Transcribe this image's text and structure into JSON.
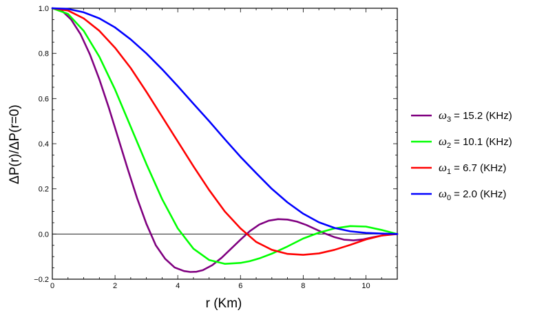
{
  "chart_data": {
    "type": "line",
    "title": "",
    "xlabel": "r (Km)",
    "ylabel": "ΔP(r)/ΔP(r=0)",
    "xlim": [
      0,
      11
    ],
    "ylim": [
      -0.2,
      1.0
    ],
    "xticks": [
      0,
      2,
      4,
      6,
      8,
      10
    ],
    "yticks": [
      -0.2,
      0.0,
      0.2,
      0.4,
      0.6,
      0.8,
      1.0
    ],
    "ytick_labels": [
      "−0.2",
      "0.0",
      "0.2",
      "0.4",
      "0.6",
      "0.8",
      "1.0"
    ],
    "grid": false,
    "legend_position": "right",
    "zero_line": true,
    "series": [
      {
        "symbol": "ω",
        "sub": "3",
        "value_text": "= 15.2 (KHz)",
        "color": "#800080",
        "x": [
          0,
          0.3,
          0.6,
          0.9,
          1.2,
          1.5,
          1.8,
          2.1,
          2.4,
          2.7,
          3.0,
          3.3,
          3.6,
          3.9,
          4.2,
          4.4,
          4.6,
          4.8,
          5.1,
          5.4,
          5.7,
          6.0,
          6.3,
          6.6,
          6.9,
          7.2,
          7.5,
          7.8,
          8.1,
          8.4,
          8.7,
          9.0,
          9.3,
          9.6,
          9.9,
          10.2,
          10.5,
          10.8,
          11.0
        ],
        "y": [
          1.0,
          0.99,
          0.95,
          0.885,
          0.795,
          0.685,
          0.56,
          0.425,
          0.29,
          0.16,
          0.045,
          -0.05,
          -0.11,
          -0.148,
          -0.164,
          -0.168,
          -0.167,
          -0.16,
          -0.138,
          -0.105,
          -0.065,
          -0.025,
          0.013,
          0.042,
          0.059,
          0.066,
          0.064,
          0.055,
          0.04,
          0.021,
          0.002,
          -0.014,
          -0.025,
          -0.028,
          -0.024,
          -0.015,
          -0.007,
          -0.001,
          0.0
        ]
      },
      {
        "symbol": "ω",
        "sub": "2",
        "value_text": "= 10.1 (KHz)",
        "color": "#00ff00",
        "x": [
          0,
          0.5,
          1.0,
          1.5,
          2.0,
          2.5,
          3.0,
          3.5,
          4.0,
          4.5,
          5.0,
          5.5,
          6.0,
          6.3,
          6.6,
          7.0,
          7.5,
          8.0,
          8.5,
          9.0,
          9.5,
          10.0,
          10.5,
          11.0
        ],
        "y": [
          1.0,
          0.975,
          0.9,
          0.785,
          0.64,
          0.475,
          0.31,
          0.155,
          0.025,
          -0.065,
          -0.115,
          -0.132,
          -0.128,
          -0.12,
          -0.108,
          -0.087,
          -0.055,
          -0.02,
          0.006,
          0.025,
          0.035,
          0.033,
          0.018,
          0.0
        ]
      },
      {
        "symbol": "ω",
        "sub": "1",
        "value_text": "= 6.7 (KHz)",
        "color": "#ff0000",
        "x": [
          0,
          0.5,
          1.0,
          1.5,
          2.0,
          2.5,
          3.0,
          3.5,
          4.0,
          4.5,
          5.0,
          5.5,
          6.0,
          6.5,
          7.0,
          7.5,
          8.0,
          8.5,
          9.0,
          9.5,
          10.0,
          10.5,
          11.0
        ],
        "y": [
          1.0,
          0.99,
          0.955,
          0.9,
          0.825,
          0.735,
          0.63,
          0.52,
          0.41,
          0.3,
          0.195,
          0.1,
          0.025,
          -0.035,
          -0.07,
          -0.088,
          -0.092,
          -0.086,
          -0.07,
          -0.048,
          -0.024,
          -0.007,
          0.0
        ]
      },
      {
        "symbol": "ω",
        "sub": "0",
        "value_text": "= 2.0 (KHz)",
        "color": "#0000ff",
        "x": [
          0,
          0.5,
          1.0,
          1.5,
          2.0,
          2.5,
          3.0,
          3.5,
          4.0,
          4.5,
          5.0,
          5.5,
          6.0,
          6.5,
          7.0,
          7.5,
          8.0,
          8.5,
          9.0,
          9.5,
          10.0,
          10.5,
          11.0
        ],
        "y": [
          1.0,
          0.997,
          0.982,
          0.955,
          0.915,
          0.862,
          0.8,
          0.73,
          0.655,
          0.577,
          0.5,
          0.42,
          0.342,
          0.27,
          0.2,
          0.14,
          0.09,
          0.052,
          0.027,
          0.012,
          0.005,
          0.002,
          0.0
        ]
      }
    ]
  }
}
